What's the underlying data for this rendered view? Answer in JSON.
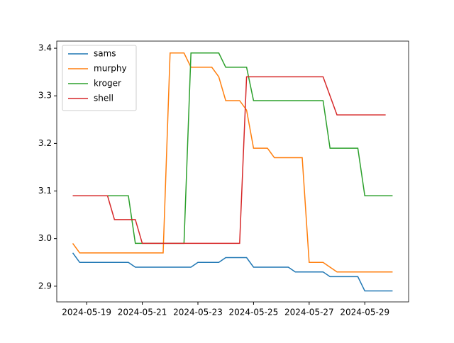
{
  "chart_data": {
    "type": "line",
    "x": [
      "2024-05-18T12:00",
      "2024-05-18T18:00",
      "2024-05-19T18:00",
      "2024-05-20T00:00",
      "2024-05-20T12:00",
      "2024-05-20T18:00",
      "2024-05-21T00:00",
      "2024-05-21T18:00",
      "2024-05-22T00:00",
      "2024-05-22T12:00",
      "2024-05-22T18:00",
      "2024-05-23T00:00",
      "2024-05-23T12:00",
      "2024-05-23T18:00",
      "2024-05-24T00:00",
      "2024-05-24T12:00",
      "2024-05-24T18:00",
      "2024-05-25T00:00",
      "2024-05-25T12:00",
      "2024-05-25T18:00",
      "2024-05-26T06:00",
      "2024-05-26T12:00",
      "2024-05-26T18:00",
      "2024-05-27T00:00",
      "2024-05-27T12:00",
      "2024-05-27T18:00",
      "2024-05-28T00:00",
      "2024-05-28T18:00",
      "2024-05-29T00:00",
      "2024-05-29T18:00",
      "2024-05-30T00:00"
    ],
    "series": [
      {
        "name": "sams",
        "color": "#1f77b4",
        "values": [
          2.97,
          2.95,
          2.95,
          2.95,
          2.95,
          2.94,
          2.94,
          2.94,
          2.94,
          2.94,
          2.94,
          2.95,
          2.95,
          2.95,
          2.96,
          2.96,
          2.96,
          2.94,
          2.94,
          2.94,
          2.94,
          2.93,
          2.93,
          2.93,
          2.93,
          2.92,
          2.92,
          2.92,
          2.89,
          2.89,
          2.89
        ]
      },
      {
        "name": "murphy",
        "color": "#ff7f0e",
        "values": [
          2.99,
          2.97,
          2.97,
          2.97,
          2.97,
          2.97,
          2.97,
          2.97,
          3.39,
          3.39,
          3.36,
          3.36,
          3.36,
          3.34,
          3.29,
          3.29,
          3.27,
          3.19,
          3.19,
          3.17,
          3.17,
          3.17,
          3.17,
          2.95,
          2.95,
          2.94,
          2.93,
          2.93,
          2.93,
          2.93,
          2.93
        ]
      },
      {
        "name": "kroger",
        "color": "#2ca02c",
        "values": [
          3.09,
          3.09,
          3.09,
          3.09,
          3.09,
          2.99,
          2.99,
          2.99,
          2.99,
          2.99,
          3.39,
          3.39,
          3.39,
          3.39,
          3.36,
          3.36,
          3.36,
          3.29,
          3.29,
          3.29,
          3.29,
          3.29,
          3.29,
          3.29,
          3.29,
          3.19,
          3.19,
          3.19,
          3.09,
          3.09,
          3.09
        ]
      },
      {
        "name": "shell",
        "color": "#d62728",
        "values": [
          3.09,
          3.09,
          3.09,
          3.04,
          3.04,
          3.04,
          2.99,
          2.99,
          2.99,
          2.99,
          2.99,
          2.99,
          2.99,
          2.99,
          2.99,
          2.99,
          3.34,
          3.34,
          3.34,
          3.34,
          3.34,
          3.34,
          3.34,
          3.34,
          3.34,
          3.3,
          3.26,
          3.26,
          3.26,
          3.26,
          null
        ]
      }
    ],
    "xlim": [
      "2024-05-17T22:12",
      "2024-05-30T13:48"
    ],
    "xticks": [
      "2024-05-19",
      "2024-05-21",
      "2024-05-23",
      "2024-05-25",
      "2024-05-27",
      "2024-05-29"
    ],
    "ylim": [
      2.867,
      3.415
    ],
    "yticks": [
      2.9,
      {
        "value": 3,
        "label": "3.0"
      },
      3.1,
      3.2,
      3.3,
      3.4
    ],
    "legend": "upper left"
  }
}
